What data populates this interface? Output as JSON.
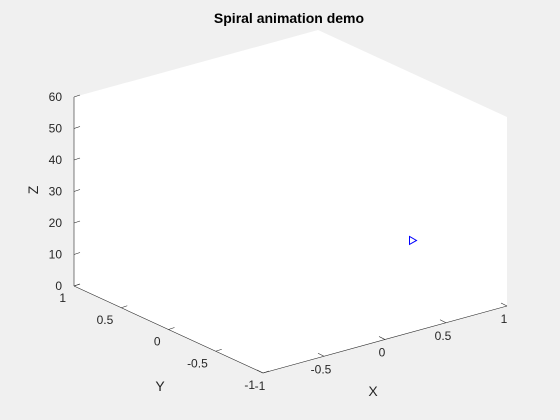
{
  "chart_data": {
    "type": "scatter",
    "title": "Spiral animation demo",
    "xlabel": "X",
    "ylabel": "Y",
    "zlabel": "Z",
    "xlim": [
      -1,
      1
    ],
    "ylim": [
      -1,
      1
    ],
    "zlim": [
      0,
      60
    ],
    "x_ticks": [
      -1,
      -0.5,
      0,
      0.5,
      1
    ],
    "x_tick_labels": [
      "-1",
      "-0.5",
      "0",
      "0.5",
      "1"
    ],
    "y_ticks": [
      -1,
      -0.5,
      0,
      0.5,
      1
    ],
    "y_tick_labels": [
      "-1",
      "-0.5",
      "0",
      "0.5",
      "1"
    ],
    "z_ticks": [
      0,
      10,
      20,
      30,
      40,
      50,
      60
    ],
    "z_tick_labels": [
      "0",
      "10",
      "20",
      "30",
      "40",
      "50",
      "60"
    ],
    "grid": false,
    "series": [
      {
        "marker": "triangle-right",
        "color": "#0000ff",
        "points": [
          {
            "x": 1,
            "y": 0,
            "z": 7
          }
        ]
      }
    ]
  }
}
